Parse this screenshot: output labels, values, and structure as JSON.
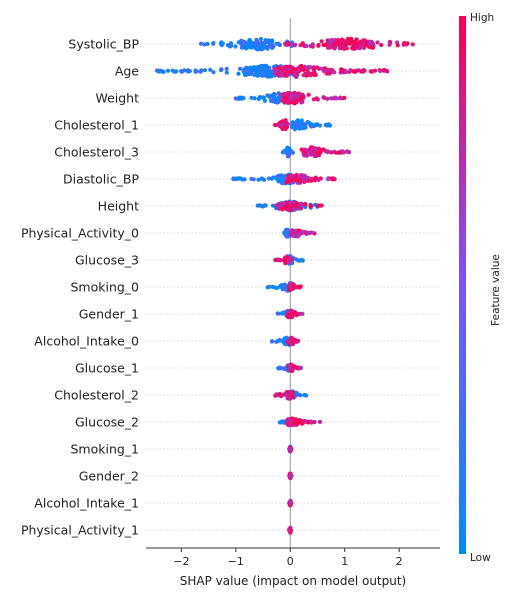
{
  "chart_data": {
    "type": "scatter",
    "subtype": "shap-beeswarm",
    "title": "",
    "xlabel": "SHAP value (impact on model output)",
    "xlim": [
      -2.65,
      2.75
    ],
    "xticks": [
      -2,
      -1,
      0,
      1,
      2
    ],
    "xtick_labels": [
      "−2",
      "−1",
      "0",
      "1",
      "2"
    ],
    "colorbar": {
      "label": "Feature value",
      "high": "High",
      "low": "Low",
      "high_color": "#ff0052",
      "low_color": "#008bfb"
    },
    "features": [
      {
        "name": "Systolic_BP",
        "low_range": [
          -1.65,
          0.1
        ],
        "high_range": [
          -0.1,
          2.35
        ],
        "low_peak": -0.6,
        "high_peak": 1.1,
        "spread": 0.42
      },
      {
        "name": "Age",
        "low_range": [
          -2.45,
          0.2
        ],
        "high_range": [
          -0.3,
          1.8
        ],
        "low_peak": -0.4,
        "high_peak": 0.1,
        "spread": 0.44
      },
      {
        "name": "Weight",
        "low_range": [
          -1.1,
          0.2
        ],
        "high_range": [
          -0.2,
          1.0
        ],
        "low_peak": -0.1,
        "high_peak": 0.05,
        "spread": 0.42
      },
      {
        "name": "Cholesterol_1",
        "low_range": [
          0.0,
          0.75
        ],
        "high_range": [
          -0.3,
          0.05
        ],
        "low_peak": 0.15,
        "high_peak": -0.1,
        "spread": 0.38
      },
      {
        "name": "Cholesterol_3",
        "low_range": [
          -0.15,
          0.05
        ],
        "high_range": [
          0.2,
          1.1
        ],
        "low_peak": -0.05,
        "high_peak": 0.4,
        "spread": 0.36
      },
      {
        "name": "Diastolic_BP",
        "low_range": [
          -1.05,
          0.1
        ],
        "high_range": [
          -0.1,
          0.85
        ],
        "low_peak": -0.05,
        "high_peak": 0.1,
        "spread": 0.36
      },
      {
        "name": "Height",
        "low_range": [
          -0.6,
          0.5
        ],
        "high_range": [
          -0.3,
          0.6
        ],
        "low_peak": 0.0,
        "high_peak": 0.0,
        "spread": 0.34
      },
      {
        "name": "Physical_Activity_0",
        "low_range": [
          -0.15,
          0.05
        ],
        "high_range": [
          0.0,
          0.45
        ],
        "low_peak": -0.05,
        "high_peak": 0.1,
        "spread": 0.32
      },
      {
        "name": "Glucose_3",
        "low_range": [
          -0.05,
          0.25
        ],
        "high_range": [
          -0.3,
          0.05
        ],
        "low_peak": 0.0,
        "high_peak": -0.05,
        "spread": 0.3
      },
      {
        "name": "Smoking_0",
        "low_range": [
          -0.5,
          0.05
        ],
        "high_range": [
          -0.05,
          0.2
        ],
        "low_peak": -0.02,
        "high_peak": 0.02,
        "spread": 0.3
      },
      {
        "name": "Gender_1",
        "low_range": [
          -0.25,
          0.1
        ],
        "high_range": [
          -0.05,
          0.25
        ],
        "low_peak": 0.0,
        "high_peak": 0.0,
        "spread": 0.3
      },
      {
        "name": "Alcohol_Intake_0",
        "low_range": [
          -0.5,
          0.05
        ],
        "high_range": [
          -0.05,
          0.2
        ],
        "low_peak": -0.02,
        "high_peak": 0.02,
        "spread": 0.3
      },
      {
        "name": "Glucose_1",
        "low_range": [
          -0.25,
          0.05
        ],
        "high_range": [
          -0.05,
          0.2
        ],
        "low_peak": 0.0,
        "high_peak": 0.0,
        "spread": 0.28
      },
      {
        "name": "Cholesterol_2",
        "low_range": [
          -0.05,
          0.3
        ],
        "high_range": [
          -0.3,
          0.1
        ],
        "low_peak": 0.02,
        "high_peak": -0.02,
        "spread": 0.3
      },
      {
        "name": "Glucose_2",
        "low_range": [
          -0.2,
          0.05
        ],
        "high_range": [
          -0.05,
          0.55
        ],
        "low_peak": 0.0,
        "high_peak": 0.02,
        "spread": 0.28
      },
      {
        "name": "Smoking_1",
        "low_range": [
          -0.02,
          0.02
        ],
        "high_range": [
          -0.02,
          0.02
        ],
        "low_peak": 0.0,
        "high_peak": 0.0,
        "spread": 0.2
      },
      {
        "name": "Gender_2",
        "low_range": [
          -0.02,
          0.02
        ],
        "high_range": [
          -0.02,
          0.02
        ],
        "low_peak": 0.0,
        "high_peak": 0.0,
        "spread": 0.2
      },
      {
        "name": "Alcohol_Intake_1",
        "low_range": [
          -0.02,
          0.02
        ],
        "high_range": [
          -0.02,
          0.02
        ],
        "low_peak": 0.0,
        "high_peak": 0.0,
        "spread": 0.2
      },
      {
        "name": "Physical_Activity_1",
        "low_range": [
          -0.02,
          0.02
        ],
        "high_range": [
          -0.02,
          0.02
        ],
        "low_peak": 0.0,
        "high_peak": 0.0,
        "spread": 0.2
      }
    ]
  }
}
